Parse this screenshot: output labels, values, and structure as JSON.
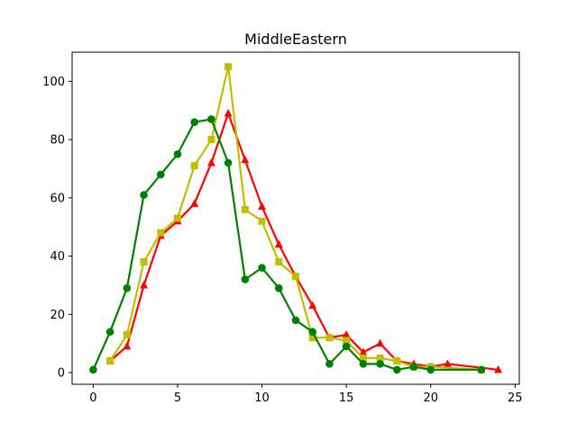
{
  "chart_data": {
    "type": "line",
    "title": "MiddleEastern",
    "xlabel": "",
    "ylabel": "",
    "xlim": [
      -1.25,
      25.25
    ],
    "ylim": [
      -4,
      110
    ],
    "xticks": [
      0,
      5,
      10,
      15,
      20,
      25
    ],
    "yticks": [
      0,
      20,
      40,
      60,
      80,
      100
    ],
    "grid": false,
    "legend": "none",
    "series": [
      {
        "color": "#ff0000",
        "marker": "triangle",
        "x": [
          1,
          2,
          3,
          4,
          5,
          6,
          7,
          8,
          9,
          10,
          11,
          12,
          13,
          14,
          15,
          16,
          17,
          18,
          19,
          20,
          21,
          24
        ],
        "y": [
          4,
          9,
          30,
          47,
          52,
          58,
          72,
          89,
          73,
          57,
          44,
          33,
          23,
          12,
          13,
          7,
          10,
          4,
          3,
          2,
          3,
          1
        ]
      },
      {
        "color": "#bfbf00",
        "marker": "square",
        "x": [
          1,
          2,
          3,
          4,
          5,
          6,
          7,
          8,
          9,
          10,
          11,
          12,
          13,
          14,
          15,
          16,
          17,
          18,
          19,
          20,
          23
        ],
        "y": [
          4,
          13,
          38,
          48,
          53,
          71,
          80,
          105,
          56,
          52,
          38,
          33,
          12,
          12,
          11,
          5,
          5,
          4,
          2,
          2,
          1
        ]
      },
      {
        "color": "#008000",
        "marker": "circle",
        "x": [
          0,
          1,
          2,
          3,
          4,
          5,
          6,
          7,
          8,
          9,
          10,
          11,
          12,
          13,
          14,
          15,
          16,
          17,
          18,
          19,
          20,
          23
        ],
        "y": [
          1,
          14,
          29,
          61,
          68,
          75,
          86,
          87,
          72,
          32,
          36,
          29,
          18,
          14,
          3,
          9,
          3,
          3,
          1,
          2,
          1,
          1
        ]
      }
    ]
  }
}
